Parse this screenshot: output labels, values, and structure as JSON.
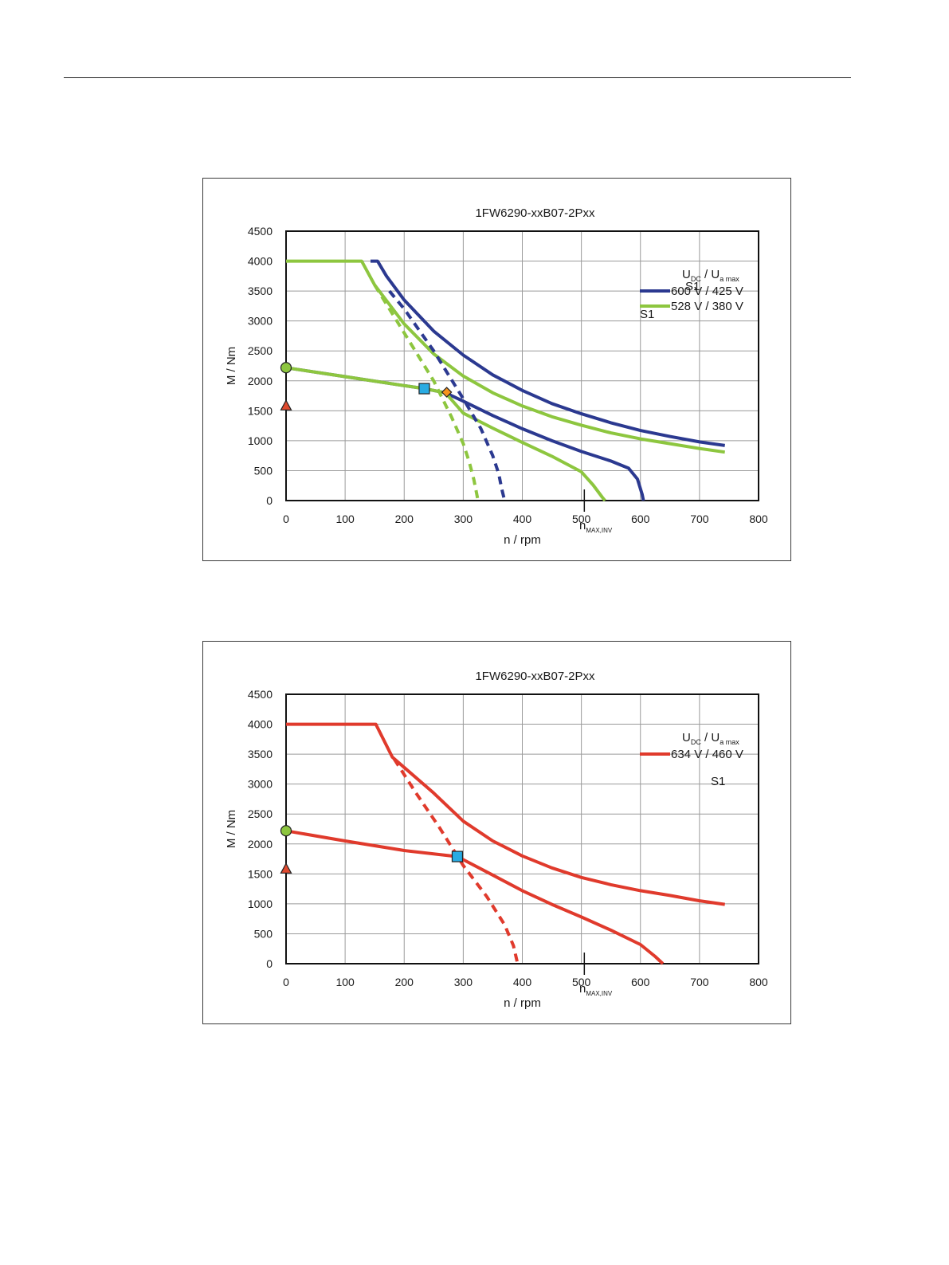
{
  "chart_data": [
    {
      "type": "line",
      "title": "1FW6290-xxB07-2Pxx",
      "xlabel": "n / rpm",
      "ylabel": "M / Nm",
      "xlim": [
        0,
        800
      ],
      "ylim": [
        0,
        4500
      ],
      "x_ticks": [
        0,
        100,
        200,
        300,
        400,
        500,
        600,
        700,
        800
      ],
      "y_ticks": [
        0,
        500,
        1000,
        1500,
        2000,
        2500,
        3000,
        3500,
        4000,
        4500
      ],
      "grid": true,
      "legend_placement": "top-right",
      "legend_title_parts": [
        "U",
        "DC",
        "/",
        "U",
        "a max"
      ],
      "colors": {
        "blue": "#2b3990",
        "green": "#8dc63f"
      },
      "series": [
        {
          "name": "600 V / 425 V",
          "color": "#2b3990",
          "style": "solid",
          "legend": true,
          "points": [
            [
              143,
              4000
            ],
            [
              155,
              4000
            ],
            [
              170,
              3750
            ],
            [
              200,
              3350
            ],
            [
              250,
              2830
            ],
            [
              300,
              2430
            ],
            [
              350,
              2100
            ],
            [
              400,
              1840
            ],
            [
              450,
              1620
            ],
            [
              500,
              1450
            ],
            [
              550,
              1300
            ],
            [
              600,
              1170
            ],
            [
              650,
              1070
            ],
            [
              700,
              980
            ],
            [
              743,
              920
            ]
          ]
        },
        {
          "name": "528 V / 380 V",
          "color": "#8dc63f",
          "style": "solid",
          "legend": true,
          "points": [
            [
              0,
              4000
            ],
            [
              128,
              4000
            ],
            [
              150,
              3600
            ],
            [
              200,
              2950
            ],
            [
              250,
              2450
            ],
            [
              300,
              2080
            ],
            [
              350,
              1800
            ],
            [
              400,
              1580
            ],
            [
              450,
              1400
            ],
            [
              500,
              1260
            ],
            [
              550,
              1130
            ],
            [
              600,
              1030
            ],
            [
              650,
              950
            ],
            [
              700,
              870
            ],
            [
              743,
              810
            ]
          ]
        },
        {
          "name": "",
          "color": "#2b3990",
          "style": "solid",
          "legend": false,
          "points": [
            [
              0,
              2220
            ],
            [
              100,
              2070
            ],
            [
              200,
              1920
            ],
            [
              234,
              1870
            ],
            [
              270,
              1800
            ],
            [
              300,
              1660
            ],
            [
              350,
              1420
            ],
            [
              400,
              1200
            ],
            [
              450,
              1000
            ],
            [
              500,
              820
            ],
            [
              550,
              660
            ],
            [
              580,
              540
            ],
            [
              595,
              360
            ],
            [
              603,
              100
            ],
            [
              605,
              0
            ]
          ]
        },
        {
          "name": "",
          "color": "#8dc63f",
          "style": "solid",
          "legend": false,
          "points": [
            [
              0,
              2220
            ],
            [
              100,
              2070
            ],
            [
              200,
              1920
            ],
            [
              234,
              1870
            ],
            [
              270,
              1800
            ],
            [
              300,
              1460
            ],
            [
              350,
              1210
            ],
            [
              400,
              970
            ],
            [
              450,
              740
            ],
            [
              500,
              480
            ],
            [
              520,
              260
            ],
            [
              535,
              60
            ],
            [
              540,
              0
            ]
          ]
        },
        {
          "name": "",
          "color": "#2b3990",
          "style": "dashed",
          "legend": false,
          "points": [
            [
              175,
              3500
            ],
            [
              200,
              3200
            ],
            [
              250,
              2500
            ],
            [
              300,
              1700
            ],
            [
              330,
              1200
            ],
            [
              350,
              750
            ],
            [
              360,
              450
            ],
            [
              365,
              200
            ],
            [
              370,
              0
            ]
          ]
        },
        {
          "name": "",
          "color": "#8dc63f",
          "style": "dashed",
          "legend": false,
          "points": [
            [
              150,
              3600
            ],
            [
              200,
              2800
            ],
            [
              250,
              2000
            ],
            [
              280,
              1400
            ],
            [
              300,
              950
            ],
            [
              310,
              650
            ],
            [
              318,
              350
            ],
            [
              322,
              150
            ],
            [
              325,
              0
            ]
          ]
        }
      ],
      "markers": [
        {
          "shape": "circle",
          "x": 0,
          "y": 2220,
          "color": "#8dc63f"
        },
        {
          "shape": "triangle",
          "x": 0,
          "y": 1580,
          "color": "#e04a2f"
        },
        {
          "shape": "square",
          "x": 234,
          "y": 1870,
          "color": "#29abe2"
        },
        {
          "shape": "diamond",
          "x": 272,
          "y": 1810,
          "color": "#f7941d"
        }
      ],
      "annotations": [
        {
          "text": "n",
          "sub": "MAX,INV",
          "x": 472,
          "y": 440
        },
        {
          "text": "S1",
          "x": 548,
          "y": 175
        },
        {
          "text": "S1",
          "x": 605,
          "y": 140
        }
      ],
      "nmax_inv": 505
    },
    {
      "type": "line",
      "title": "1FW6290-xxB07-2Pxx",
      "xlabel": "n / rpm",
      "ylabel": "M / Nm",
      "xlim": [
        0,
        800
      ],
      "ylim": [
        0,
        4500
      ],
      "x_ticks": [
        0,
        100,
        200,
        300,
        400,
        500,
        600,
        700,
        800
      ],
      "y_ticks": [
        0,
        500,
        1000,
        1500,
        2000,
        2500,
        3000,
        3500,
        4000,
        4500
      ],
      "grid": true,
      "legend_placement": "top-right",
      "legend_title_parts": [
        "U",
        "DC",
        "/",
        "U",
        "a max"
      ],
      "colors": {
        "red": "#e03a2c"
      },
      "series": [
        {
          "name": "634 V / 460 V",
          "color": "#e03a2c",
          "style": "solid",
          "legend": true,
          "points": [
            [
              0,
              4000
            ],
            [
              152,
              4000
            ],
            [
              180,
              3450
            ],
            [
              250,
              2850
            ],
            [
              300,
              2380
            ],
            [
              350,
              2050
            ],
            [
              400,
              1800
            ],
            [
              450,
              1600
            ],
            [
              500,
              1440
            ],
            [
              550,
              1320
            ],
            [
              600,
              1220
            ],
            [
              650,
              1140
            ],
            [
              700,
              1050
            ],
            [
              743,
              990
            ]
          ]
        },
        {
          "name": "",
          "color": "#e03a2c",
          "style": "solid",
          "legend": false,
          "points": [
            [
              0,
              2220
            ],
            [
              100,
              2050
            ],
            [
              200,
              1890
            ],
            [
              290,
              1790
            ],
            [
              350,
              1480
            ],
            [
              400,
              1220
            ],
            [
              450,
              990
            ],
            [
              500,
              780
            ],
            [
              550,
              560
            ],
            [
              600,
              320
            ],
            [
              625,
              120
            ],
            [
              638,
              0
            ]
          ]
        },
        {
          "name": "",
          "color": "#e03a2c",
          "style": "dashed",
          "legend": false,
          "points": [
            [
              183,
              3420
            ],
            [
              220,
              2850
            ],
            [
              260,
              2270
            ],
            [
              300,
              1640
            ],
            [
              340,
              1120
            ],
            [
              370,
              650
            ],
            [
              385,
              300
            ],
            [
              392,
              0
            ]
          ]
        }
      ],
      "markers": [
        {
          "shape": "circle",
          "x": 0,
          "y": 2220,
          "color": "#8dc63f"
        },
        {
          "shape": "triangle",
          "x": 0,
          "y": 1580,
          "color": "#e04a2f"
        },
        {
          "shape": "square",
          "x": 290,
          "y": 1790,
          "color": "#29abe2"
        }
      ],
      "annotations": [
        {
          "text": "n",
          "sub": "MAX,INV",
          "x": 472,
          "y": 440
        },
        {
          "text": "S1",
          "x": 637,
          "y": 180
        }
      ],
      "nmax_inv": 505
    }
  ]
}
